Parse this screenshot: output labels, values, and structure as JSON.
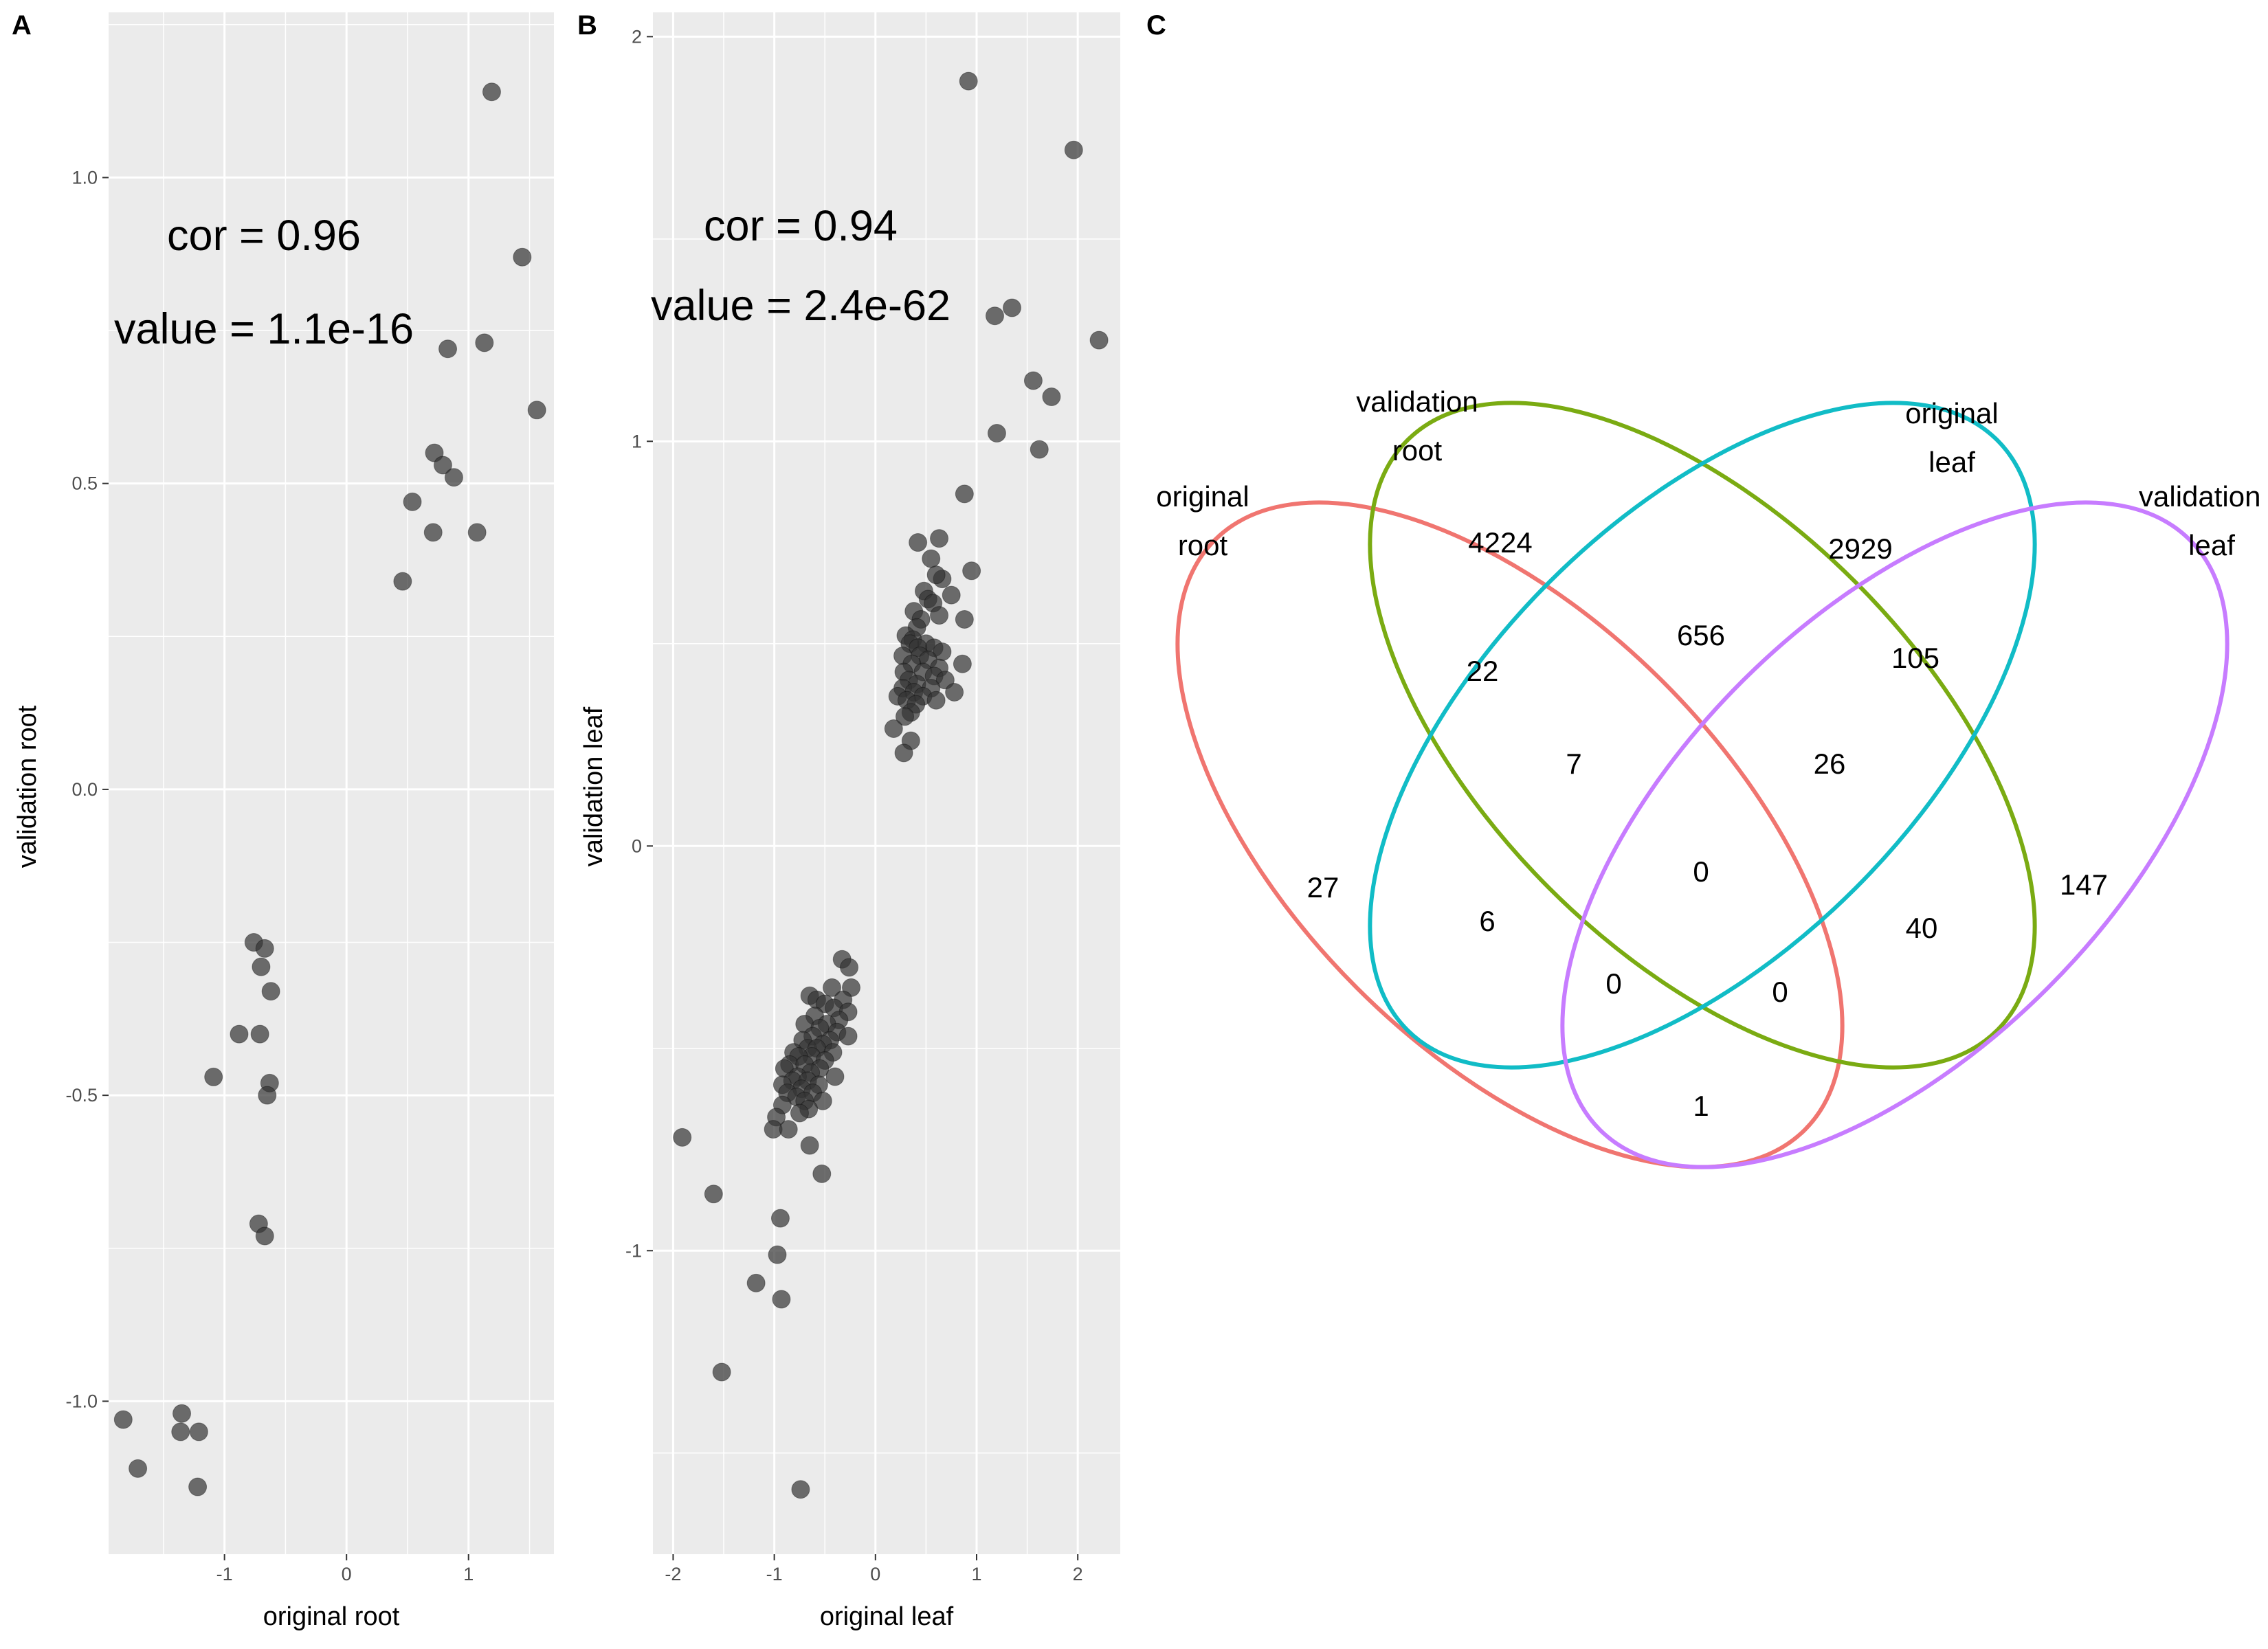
{
  "panels": {
    "A": {
      "letter": "A",
      "annotations": {
        "cor": "cor = 0.96",
        "pvalue": "value = 1.1e-16"
      }
    },
    "B": {
      "letter": "B",
      "annotations": {
        "cor": "cor = 0.94",
        "pvalue": "value = 2.4e-62"
      }
    },
    "C": {
      "letter": "C"
    }
  },
  "colors": {
    "panel_bg": "#ebebeb",
    "grid_major": "#ffffff",
    "point": "#333333",
    "original_root": "#f07570",
    "validation_root": "#7aab12",
    "original_leaf": "#11bcc6",
    "validation_leaf": "#c77cff"
  },
  "chart_data": [
    {
      "type": "scatter",
      "panel": "A",
      "xlabel": "original root",
      "ylabel": "validation root",
      "xlim": [
        -1.95,
        1.7
      ],
      "ylim": [
        -1.25,
        1.27
      ],
      "xticks": [
        -1,
        0,
        1
      ],
      "yticks": [
        -1.0,
        -0.5,
        0.0,
        0.5,
        1.0
      ],
      "xtick_labels": [
        "-1",
        "0",
        "1"
      ],
      "ytick_labels": [
        "-1.0",
        "-0.5",
        "0.0",
        "0.5",
        "1.0"
      ],
      "points": [
        [
          1.19,
          1.14
        ],
        [
          1.44,
          0.87
        ],
        [
          0.83,
          0.72
        ],
        [
          1.13,
          0.73
        ],
        [
          1.56,
          0.62
        ],
        [
          0.72,
          0.55
        ],
        [
          0.79,
          0.53
        ],
        [
          0.88,
          0.51
        ],
        [
          0.54,
          0.47
        ],
        [
          0.71,
          0.42
        ],
        [
          1.07,
          0.42
        ],
        [
          0.46,
          0.34
        ],
        [
          -0.76,
          -0.25
        ],
        [
          -0.67,
          -0.26
        ],
        [
          -0.7,
          -0.29
        ],
        [
          -0.62,
          -0.33
        ],
        [
          -0.88,
          -0.4
        ],
        [
          -0.71,
          -0.4
        ],
        [
          -1.09,
          -0.47
        ],
        [
          -0.63,
          -0.48
        ],
        [
          -0.65,
          -0.5
        ],
        [
          -0.72,
          -0.71
        ],
        [
          -0.67,
          -0.73
        ],
        [
          -1.83,
          -1.03
        ],
        [
          -1.71,
          -1.11
        ],
        [
          -1.35,
          -1.02
        ],
        [
          -1.36,
          -1.05
        ],
        [
          -1.21,
          -1.05
        ],
        [
          -1.22,
          -1.14
        ]
      ]
    },
    {
      "type": "scatter",
      "panel": "B",
      "xlabel": "original leaf",
      "ylabel": "validation leaf",
      "xlim": [
        -2.2,
        2.42
      ],
      "ylim": [
        -1.75,
        2.06
      ],
      "xticks": [
        -2,
        -1,
        0,
        1,
        2
      ],
      "yticks": [
        -1,
        0,
        1,
        2
      ],
      "xtick_labels": [
        "-2",
        "-1",
        "0",
        "1",
        "2"
      ],
      "ytick_labels": [
        "-1",
        "0",
        "1",
        "2"
      ],
      "points": [
        [
          0.92,
          1.89
        ],
        [
          1.96,
          1.72
        ],
        [
          1.35,
          1.33
        ],
        [
          1.18,
          1.31
        ],
        [
          2.21,
          1.25
        ],
        [
          1.56,
          1.15
        ],
        [
          1.74,
          1.11
        ],
        [
          1.2,
          1.02
        ],
        [
          1.62,
          0.98
        ],
        [
          0.88,
          0.87
        ],
        [
          0.42,
          0.75
        ],
        [
          0.63,
          0.76
        ],
        [
          0.55,
          0.71
        ],
        [
          0.95,
          0.68
        ],
        [
          0.66,
          0.66
        ],
        [
          0.6,
          0.67
        ],
        [
          0.48,
          0.63
        ],
        [
          0.75,
          0.62
        ],
        [
          0.52,
          0.61
        ],
        [
          0.57,
          0.6
        ],
        [
          0.38,
          0.58
        ],
        [
          0.63,
          0.57
        ],
        [
          0.88,
          0.56
        ],
        [
          0.45,
          0.56
        ],
        [
          0.41,
          0.54
        ],
        [
          0.3,
          0.52
        ],
        [
          0.37,
          0.51
        ],
        [
          0.5,
          0.5
        ],
        [
          0.34,
          0.5
        ],
        [
          0.58,
          0.49
        ],
        [
          0.42,
          0.49
        ],
        [
          0.66,
          0.48
        ],
        [
          0.27,
          0.47
        ],
        [
          0.44,
          0.47
        ],
        [
          0.52,
          0.46
        ],
        [
          0.86,
          0.45
        ],
        [
          0.36,
          0.45
        ],
        [
          0.63,
          0.44
        ],
        [
          0.28,
          0.43
        ],
        [
          0.47,
          0.43
        ],
        [
          0.58,
          0.42
        ],
        [
          0.33,
          0.41
        ],
        [
          0.69,
          0.41
        ],
        [
          0.41,
          0.4
        ],
        [
          0.27,
          0.39
        ],
        [
          0.55,
          0.39
        ],
        [
          0.38,
          0.38
        ],
        [
          0.78,
          0.38
        ],
        [
          0.22,
          0.37
        ],
        [
          0.47,
          0.37
        ],
        [
          0.31,
          0.36
        ],
        [
          0.6,
          0.36
        ],
        [
          0.4,
          0.35
        ],
        [
          0.35,
          0.33
        ],
        [
          0.29,
          0.32
        ],
        [
          0.18,
          0.29
        ],
        [
          0.35,
          0.26
        ],
        [
          0.28,
          0.23
        ],
        [
          -0.33,
          -0.28
        ],
        [
          -0.26,
          -0.3
        ],
        [
          -0.24,
          -0.35
        ],
        [
          -0.43,
          -0.35
        ],
        [
          -0.65,
          -0.37
        ],
        [
          -0.32,
          -0.38
        ],
        [
          -0.58,
          -0.38
        ],
        [
          -0.5,
          -0.39
        ],
        [
          -0.41,
          -0.4
        ],
        [
          -0.27,
          -0.41
        ],
        [
          -0.6,
          -0.42
        ],
        [
          -0.36,
          -0.43
        ],
        [
          -0.7,
          -0.44
        ],
        [
          -0.48,
          -0.44
        ],
        [
          -0.55,
          -0.45
        ],
        [
          -0.38,
          -0.46
        ],
        [
          -0.62,
          -0.47
        ],
        [
          -0.27,
          -0.47
        ],
        [
          -0.45,
          -0.48
        ],
        [
          -0.72,
          -0.48
        ],
        [
          -0.52,
          -0.49
        ],
        [
          -0.67,
          -0.5
        ],
        [
          -0.58,
          -0.5
        ],
        [
          -0.81,
          -0.51
        ],
        [
          -0.42,
          -0.51
        ],
        [
          -0.63,
          -0.52
        ],
        [
          -0.76,
          -0.52
        ],
        [
          -0.5,
          -0.53
        ],
        [
          -0.85,
          -0.54
        ],
        [
          -0.7,
          -0.54
        ],
        [
          -0.55,
          -0.55
        ],
        [
          -0.9,
          -0.55
        ],
        [
          -0.64,
          -0.56
        ],
        [
          -0.77,
          -0.57
        ],
        [
          -0.4,
          -0.57
        ],
        [
          -0.82,
          -0.58
        ],
        [
          -0.67,
          -0.58
        ],
        [
          -0.92,
          -0.59
        ],
        [
          -0.56,
          -0.59
        ],
        [
          -0.73,
          -0.6
        ],
        [
          -0.87,
          -0.61
        ],
        [
          -0.62,
          -0.61
        ],
        [
          -0.78,
          -0.62
        ],
        [
          -0.7,
          -0.63
        ],
        [
          -0.52,
          -0.63
        ],
        [
          -0.92,
          -0.64
        ],
        [
          -0.66,
          -0.65
        ],
        [
          -0.75,
          -0.66
        ],
        [
          -0.98,
          -0.67
        ],
        [
          -1.01,
          -0.7
        ],
        [
          -0.86,
          -0.7
        ],
        [
          -0.65,
          -0.74
        ],
        [
          -0.53,
          -0.81
        ],
        [
          -1.91,
          -0.72
        ],
        [
          -1.6,
          -0.86
        ],
        [
          -0.94,
          -0.92
        ],
        [
          -0.97,
          -1.01
        ],
        [
          -1.18,
          -1.08
        ],
        [
          -0.93,
          -1.12
        ],
        [
          -1.52,
          -1.3
        ],
        [
          -0.74,
          -1.59
        ]
      ]
    },
    {
      "type": "venn",
      "panel": "C",
      "sets": [
        {
          "name": "original root",
          "label_lines": [
            "original",
            "root"
          ]
        },
        {
          "name": "validation root",
          "label_lines": [
            "validation",
            "root"
          ]
        },
        {
          "name": "original leaf",
          "label_lines": [
            "original",
            "leaf"
          ]
        },
        {
          "name": "validation leaf",
          "label_lines": [
            "validation",
            "leaf"
          ]
        }
      ],
      "regions": [
        {
          "sets": [
            "original root"
          ],
          "count": 27
        },
        {
          "sets": [
            "validation root"
          ],
          "count": 4224
        },
        {
          "sets": [
            "original leaf"
          ],
          "count": 2929
        },
        {
          "sets": [
            "validation leaf"
          ],
          "count": 147
        },
        {
          "sets": [
            "original root",
            "validation root"
          ],
          "count": 22
        },
        {
          "sets": [
            "validation root",
            "original leaf"
          ],
          "count": 656
        },
        {
          "sets": [
            "original leaf",
            "validation leaf"
          ],
          "count": 105
        },
        {
          "sets": [
            "original root",
            "validation root",
            "original leaf"
          ],
          "count": 7
        },
        {
          "sets": [
            "validation root",
            "original leaf",
            "validation leaf"
          ],
          "count": 26
        },
        {
          "sets": [
            "original root",
            "validation root",
            "original leaf",
            "validation leaf"
          ],
          "count": 0
        },
        {
          "sets": [
            "original root",
            "original leaf"
          ],
          "count": 6
        },
        {
          "sets": [
            "validation root",
            "validation leaf"
          ],
          "count": 40
        },
        {
          "sets": [
            "original root",
            "original leaf",
            "validation leaf"
          ],
          "count": 0
        },
        {
          "sets": [
            "original root",
            "validation root",
            "validation leaf"
          ],
          "count": 0
        },
        {
          "sets": [
            "original root",
            "validation leaf"
          ],
          "count": 1
        }
      ]
    }
  ]
}
